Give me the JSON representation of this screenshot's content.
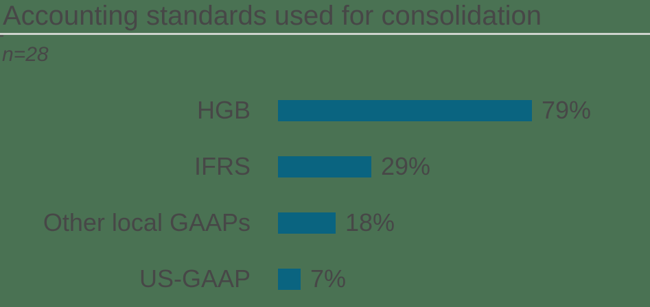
{
  "page": {
    "background_color": "#4a7253",
    "text_color": "#474747",
    "divider_color": "#ced3cd"
  },
  "header": {
    "title": "Accounting standards used for consolidation",
    "subtitle": "n=28"
  },
  "chart_data": {
    "type": "bar",
    "orientation": "horizontal",
    "title": "Accounting standards used for consolidation",
    "subtitle": "n=28",
    "sample_size": 28,
    "categories": [
      "HGB",
      "IFRS",
      "Other local GAAPs",
      "US-GAAP"
    ],
    "values": [
      79,
      29,
      18,
      7
    ],
    "value_labels": [
      "79%",
      "29%",
      "18%",
      "7%"
    ],
    "unit": "%",
    "bar_color": "#0a6480",
    "text_color": "#474747",
    "axis": {
      "xlim": [
        0,
        100
      ],
      "gridlines": false,
      "tick_labels": [],
      "value_labels_position": "end-of-bar",
      "legend": "none"
    }
  }
}
